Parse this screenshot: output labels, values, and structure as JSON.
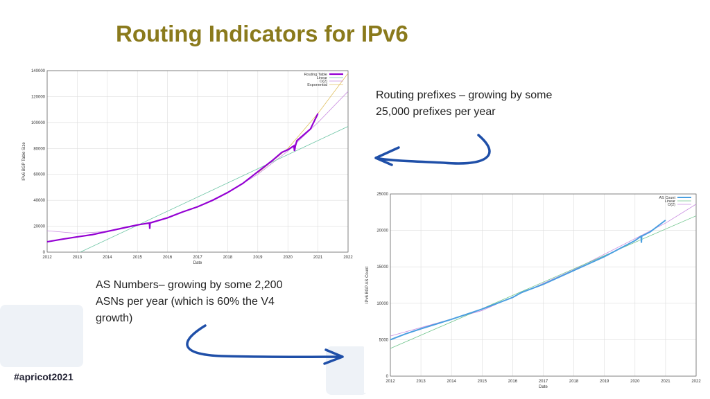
{
  "slide": {
    "title": "Routing Indicators for IPv6",
    "note_prefixes": "Routing prefixes – growing by some 25,000 prefixes per year",
    "note_asns": "AS Numbers– growing by some 2,200 ASNs per year (which is 60% the V4 growth)",
    "hashtag": "#apricot2021",
    "arrow_color": "#1f4fa8"
  },
  "chart_data": [
    {
      "type": "line",
      "xlabel": "Date",
      "ylabel": "IPv6 BGP Table Size",
      "xlim": [
        2012,
        2022
      ],
      "ylim": [
        0,
        140000
      ],
      "xticks": [
        2012,
        2013,
        2014,
        2015,
        2016,
        2017,
        2018,
        2019,
        2020,
        2021,
        2022
      ],
      "yticks": [
        0,
        20000,
        40000,
        60000,
        80000,
        100000,
        120000,
        140000
      ],
      "grid": true,
      "legend": "top-right",
      "series": [
        {
          "name": "Routing Table",
          "color": "#9400d3",
          "width": 2.2,
          "x": [
            2012,
            2012.5,
            2013,
            2013.5,
            2014,
            2014.5,
            2015,
            2015.4,
            2015.41,
            2015.42,
            2016,
            2016.5,
            2017,
            2017.5,
            2018,
            2018.5,
            2019,
            2019.5,
            2019.8,
            2020,
            2020.2,
            2020.22,
            2020.25,
            2020.3,
            2020.5,
            2020.75,
            2021
          ],
          "y": [
            8000,
            10000,
            11800,
            13500,
            16000,
            18500,
            21000,
            22500,
            18000,
            22500,
            26500,
            31000,
            35000,
            40000,
            46000,
            53000,
            62000,
            71000,
            77000,
            79000,
            82000,
            78000,
            82000,
            86000,
            90000,
            95000,
            107000
          ]
        },
        {
          "name": "Linear",
          "color": "#6cc4a4",
          "width": 0.8,
          "x": [
            2013.1,
            2022
          ],
          "y": [
            0,
            97000
          ]
        },
        {
          "name": "O(2)",
          "color": "#c88be0",
          "width": 0.8,
          "x": [
            2012,
            2013,
            2014,
            2015,
            2016,
            2017,
            2018,
            2019,
            2020,
            2021,
            2022
          ],
          "y": [
            16500,
            14500,
            16000,
            20500,
            26500,
            35000,
            46000,
            60000,
            78000,
            100000,
            124000
          ]
        },
        {
          "name": "Exponential",
          "color": "#e0c060",
          "width": 0.8,
          "x": [
            2019,
            2020,
            2021,
            2022
          ],
          "y": [
            61000,
            80000,
            107000,
            138000
          ]
        }
      ]
    },
    {
      "type": "line",
      "xlabel": "Date",
      "ylabel": "IPv6 BGP AS Count",
      "xlim": [
        2012,
        2022
      ],
      "ylim": [
        0,
        25000
      ],
      "xticks": [
        2012,
        2013,
        2014,
        2015,
        2016,
        2017,
        2018,
        2019,
        2020,
        2021,
        2022
      ],
      "yticks": [
        0,
        5000,
        10000,
        15000,
        20000,
        25000
      ],
      "grid": true,
      "legend": "top-right",
      "series": [
        {
          "name": "AS Count",
          "color": "#4a9fe0",
          "width": 2,
          "x": [
            2012,
            2012.5,
            2013,
            2014,
            2015,
            2016,
            2016.3,
            2017,
            2018,
            2019,
            2020,
            2020.2,
            2020.21,
            2020.22,
            2020.5,
            2021
          ],
          "y": [
            5000,
            5800,
            6500,
            7800,
            9200,
            10800,
            11500,
            12600,
            14500,
            16400,
            18600,
            19200,
            18300,
            19200,
            19800,
            21400
          ]
        },
        {
          "name": "Linear",
          "color": "#6cc48a",
          "width": 0.8,
          "x": [
            2012,
            2022
          ],
          "y": [
            3800,
            22000
          ]
        },
        {
          "name": "O(2)",
          "color": "#c88be0",
          "width": 0.8,
          "x": [
            2012,
            2015,
            2018,
            2021,
            2022
          ],
          "y": [
            5500,
            9000,
            14600,
            21000,
            23600
          ]
        }
      ]
    }
  ]
}
